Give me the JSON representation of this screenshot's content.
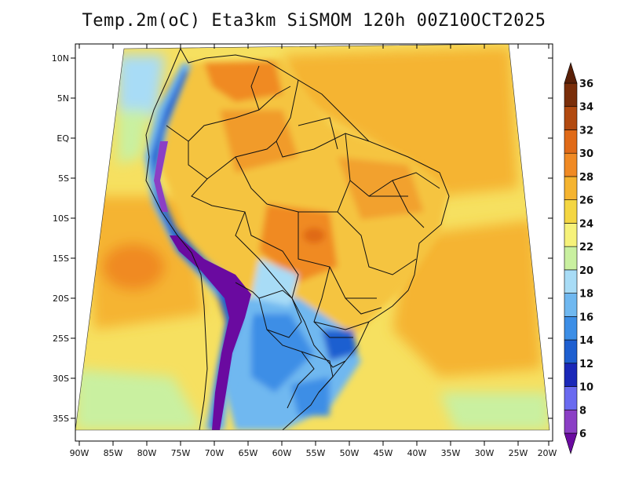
{
  "title": "Temp.2m(oC) Eta3km SiSMOM 120h 00Z10OCT2025",
  "lat_labels": [
    "10N",
    "5N",
    "EQ",
    "5S",
    "10S",
    "15S",
    "20S",
    "25S",
    "30S",
    "35S"
  ],
  "lon_labels": [
    "90W",
    "85W",
    "80W",
    "75W",
    "70W",
    "65W",
    "60W",
    "55W",
    "50W",
    "45W",
    "40W",
    "35W",
    "30W",
    "25W",
    "20W"
  ],
  "colorbar": {
    "levels": [
      "6",
      "8",
      "10",
      "12",
      "14",
      "16",
      "18",
      "20",
      "22",
      "24",
      "26",
      "28",
      "30",
      "32",
      "34",
      "36"
    ],
    "colors": [
      "#6a0aa0",
      "#8b3fc5",
      "#6a6af0",
      "#1a28b8",
      "#1e5fd0",
      "#3c8ee6",
      "#6fb8f0",
      "#a8dcf6",
      "#c9f0a0",
      "#f6f27a",
      "#f4d642",
      "#f5b430",
      "#f08a24",
      "#e06a18",
      "#b24a10",
      "#7a2e0a",
      "#5a2008"
    ]
  }
}
